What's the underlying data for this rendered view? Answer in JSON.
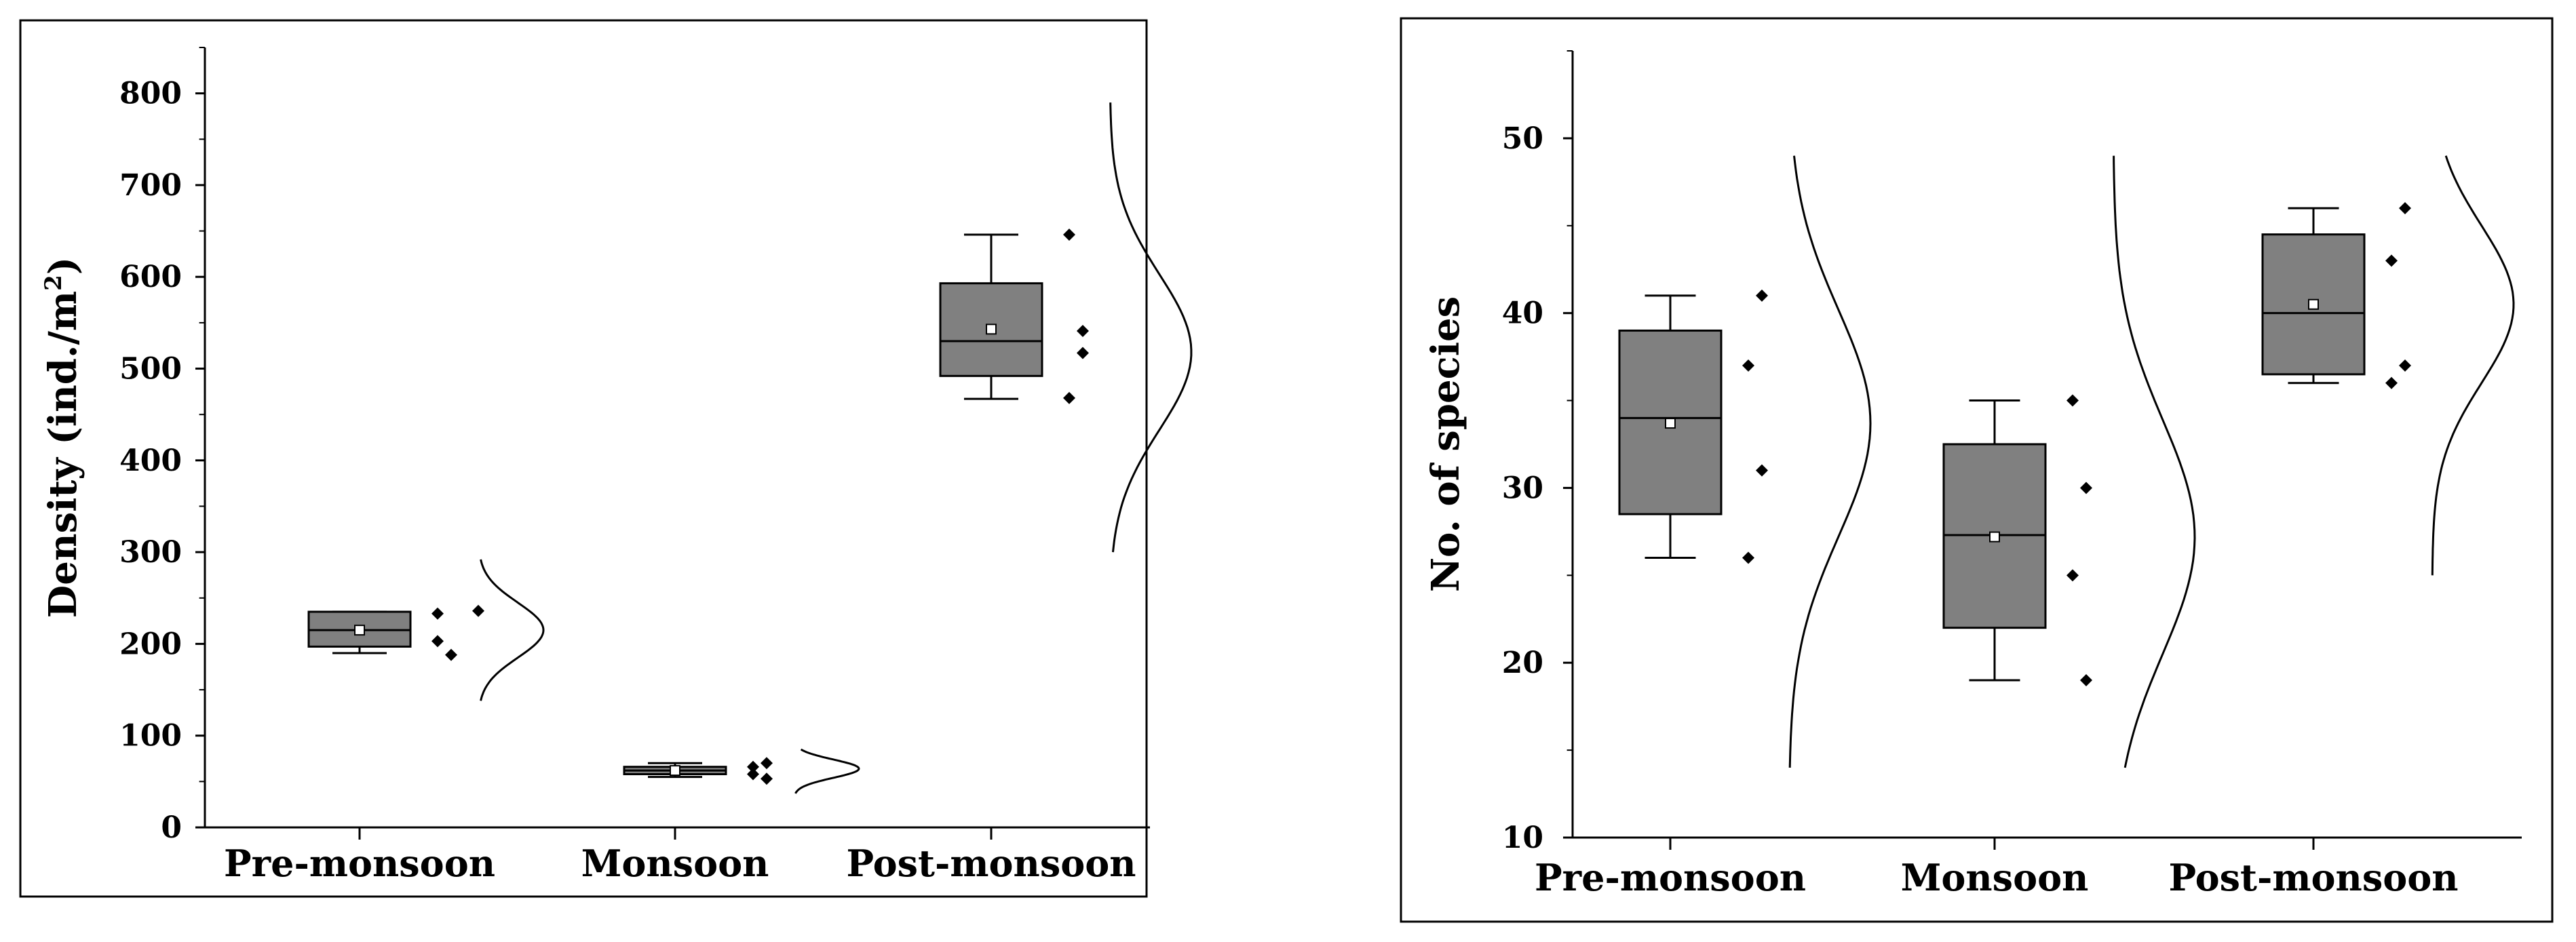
{
  "chart_data": [
    {
      "type": "box",
      "title": "",
      "ylabel": "Density (ind./m",
      "ylabel_superscript": "2",
      "ylabel_suffix": ")",
      "ylim": [
        0,
        850
      ],
      "yticks": [
        0,
        100,
        200,
        300,
        400,
        500,
        600,
        700,
        800
      ],
      "grid": false,
      "categories": [
        "Pre-monsoon",
        "Monsoon",
        "Post-monsoon"
      ],
      "box_color": "#808080",
      "boxes": [
        {
          "category": "Pre-monsoon",
          "whisker_low": 190,
          "q1": 197,
          "median": 215,
          "q3": 235,
          "whisker_high": 235,
          "mean": 215,
          "points": [
            233,
            188,
            203,
            236
          ],
          "curve": {
            "mean": 215,
            "sd": 30,
            "ymin": 138,
            "ymax": 292,
            "scale": 0.32
          }
        },
        {
          "category": "Monsoon",
          "whisker_low": 55,
          "q1": 58,
          "median": 62,
          "q3": 66,
          "whisker_high": 70,
          "mean": 62,
          "points": [
            66,
            53,
            58,
            70
          ],
          "curve": {
            "mean": 64,
            "sd": 10,
            "ymin": 37,
            "ymax": 85,
            "scale": 0.32
          }
        },
        {
          "category": "Post-monsoon",
          "whisker_low": 467,
          "q1": 492,
          "median": 530,
          "q3": 593,
          "whisker_high": 646,
          "mean": 543,
          "points": [
            646,
            541,
            468,
            517
          ],
          "curve": {
            "mean": 518,
            "sd": 85,
            "ymin": 300,
            "ymax": 790,
            "scale": 0.4
          }
        }
      ]
    },
    {
      "type": "box",
      "title": "",
      "ylabel": "No. of species",
      "ylim": [
        10,
        55
      ],
      "yticks": [
        10,
        20,
        30,
        40,
        50
      ],
      "grid": false,
      "categories": [
        "Pre-monsoon",
        "Monsoon",
        "Post-monsoon"
      ],
      "box_color": "#808080",
      "boxes": [
        {
          "category": "Pre-monsoon",
          "whisker_low": 26,
          "q1": 28.5,
          "median": 34,
          "q3": 39,
          "whisker_high": 41,
          "mean": 33.7,
          "points": [
            37,
            31,
            26,
            41
          ],
          "curve": {
            "mean": 33.7,
            "sd": 6.5,
            "ymin": 14,
            "ymax": 49,
            "scale": 0.4
          }
        },
        {
          "category": "Monsoon",
          "whisker_low": 19,
          "q1": 22,
          "median": 27.3,
          "q3": 32.5,
          "whisker_high": 35,
          "mean": 27.2,
          "points": [
            35,
            30,
            25,
            19
          ],
          "curve": {
            "mean": 27.2,
            "sd": 6.7,
            "ymin": 14,
            "ymax": 49,
            "scale": 0.4
          }
        },
        {
          "category": "Post-monsoon",
          "whisker_low": 36,
          "q1": 36.5,
          "median": 40,
          "q3": 44.5,
          "whisker_high": 46,
          "mean": 40.5,
          "points": [
            43,
            37,
            36,
            46
          ],
          "curve": {
            "mean": 40.5,
            "sd": 4.5,
            "ymin": 25,
            "ymax": 49,
            "scale": 0.4
          }
        }
      ]
    }
  ]
}
